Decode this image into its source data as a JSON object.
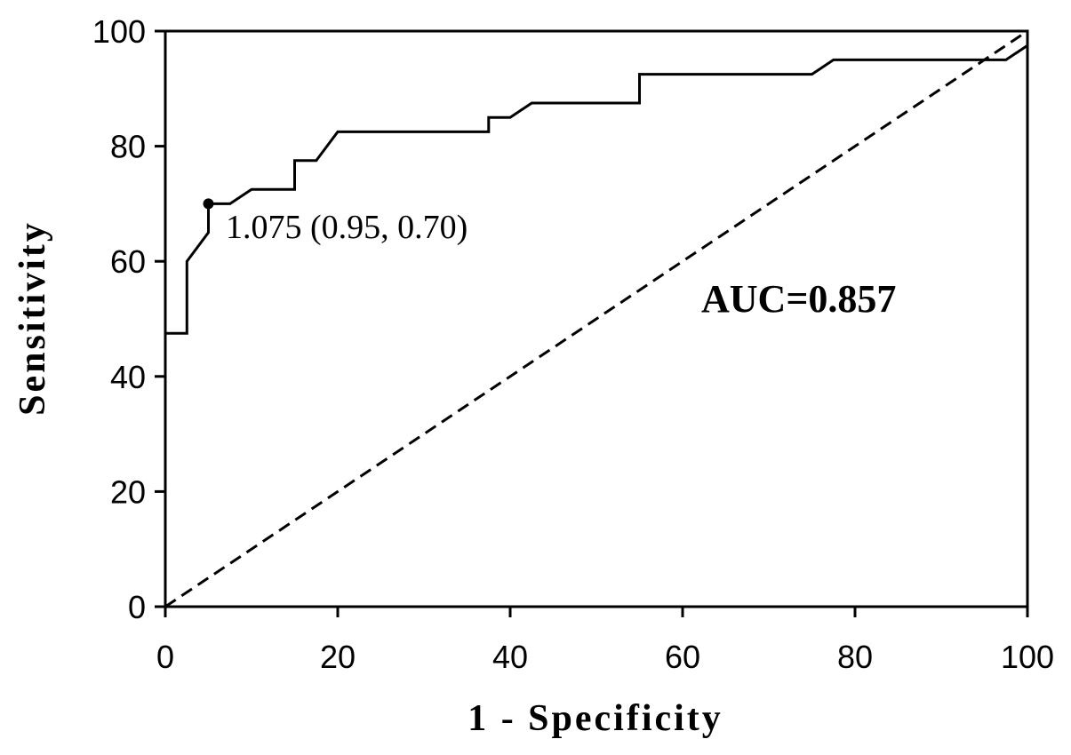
{
  "chart_data": {
    "type": "line",
    "xlabel": "1 - Specificity",
    "ylabel": "Sensitivity",
    "xlim": [
      0,
      100
    ],
    "ylim": [
      0,
      100
    ],
    "xticks": [
      "0",
      "20",
      "40",
      "60",
      "80",
      "100"
    ],
    "yticks": [
      "0",
      "20",
      "40",
      "60",
      "80",
      "100"
    ],
    "series": [
      {
        "line_style": "solid",
        "color": "#000000",
        "x": [
          0,
          0,
          2.5,
          2.5,
          5,
          5,
          7.5,
          10,
          15,
          15,
          17.5,
          20,
          37.5,
          37.5,
          40,
          42.5,
          55,
          55,
          75,
          77.5,
          97.5,
          100
        ],
        "y": [
          47.5,
          47.5,
          47.5,
          60,
          65,
          70,
          70,
          72.5,
          72.5,
          77.5,
          77.5,
          82.5,
          82.5,
          85,
          85,
          87.5,
          87.5,
          92.5,
          92.5,
          95,
          95,
          97.5
        ]
      },
      {
        "line_style": "dashed",
        "color": "#000000",
        "x": [
          0,
          100
        ],
        "y": [
          0,
          100
        ]
      }
    ],
    "marker": {
      "x": 5,
      "y": 70,
      "label": "1.075 (0.95, 0.70)"
    },
    "annotation": "AUC=0.857"
  }
}
